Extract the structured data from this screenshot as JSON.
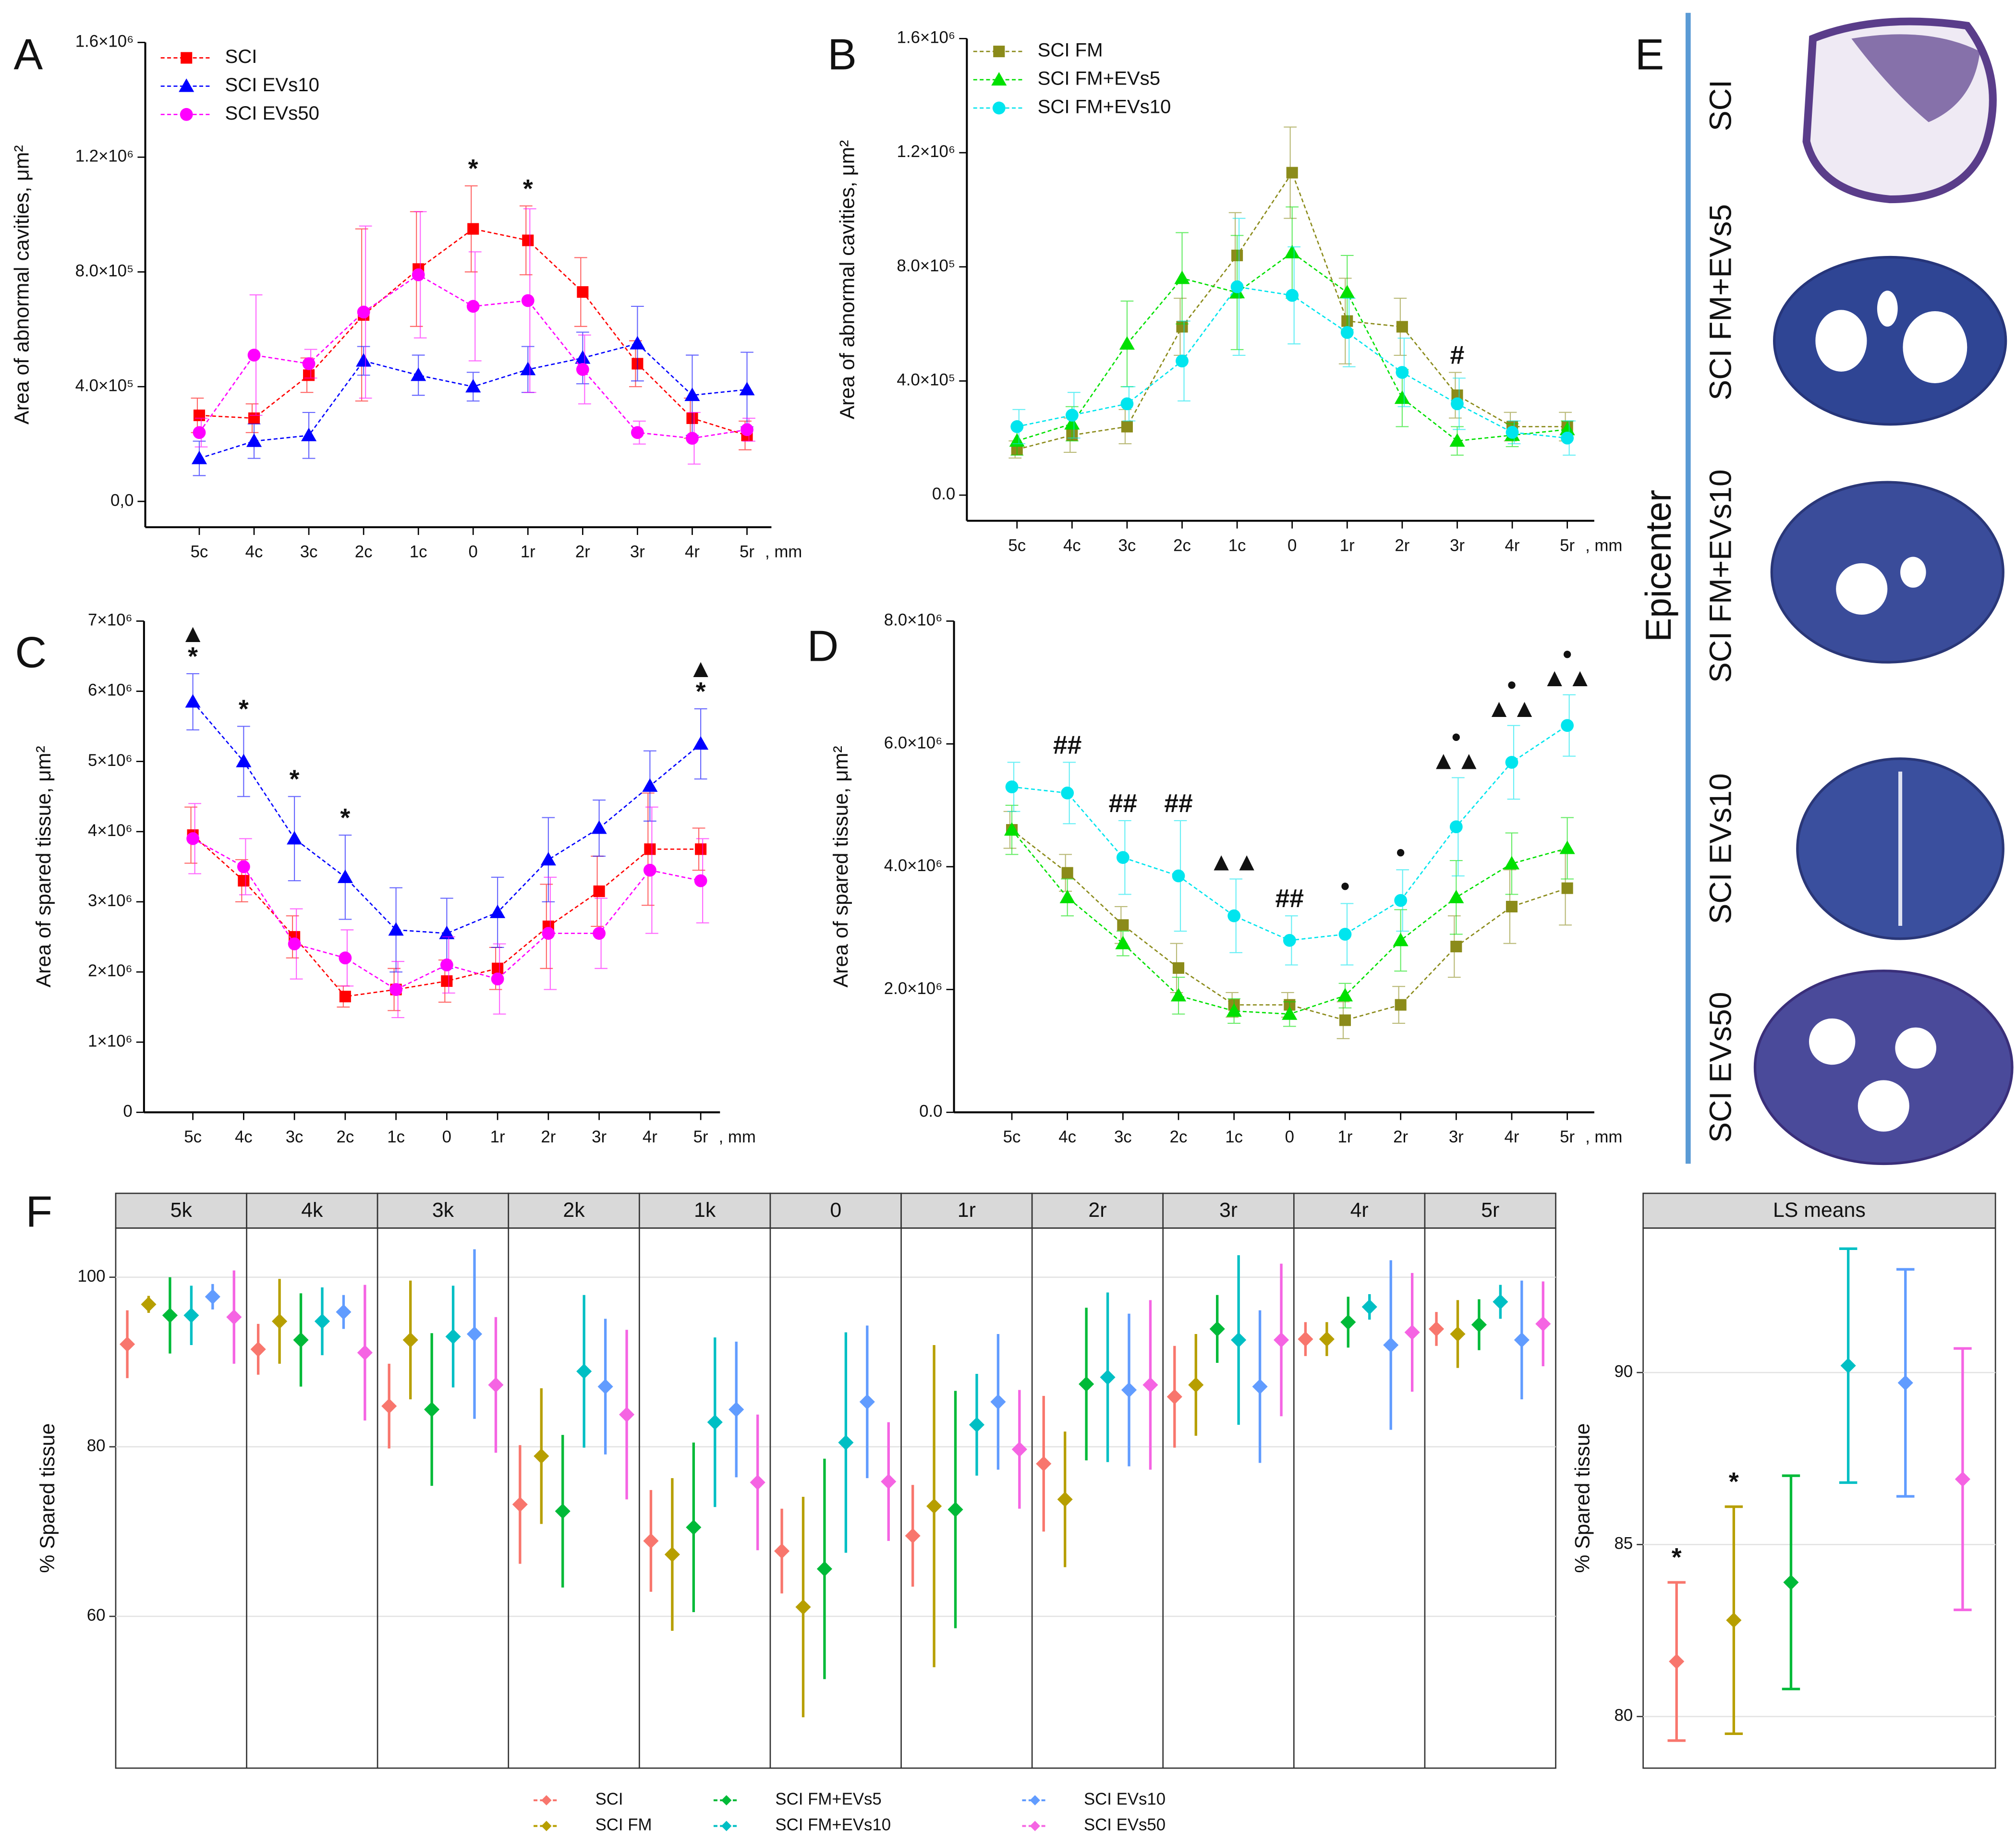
{
  "chart_data": [
    {
      "type": "line",
      "panel": "A",
      "ylabel": "Area of abnormal cavities, μm²",
      "xlabel": ", mm",
      "categories": [
        "5c",
        "4c",
        "3c",
        "2c",
        "1c",
        "0",
        "1r",
        "2r",
        "3r",
        "4r",
        "5r"
      ],
      "ylim": [
        -90000,
        1600000
      ],
      "yticks": [
        {
          "value": 0,
          "label": "0,0"
        },
        {
          "value": 400000,
          "label": "4.0×10⁵"
        },
        {
          "value": 800000,
          "label": "8.0×10⁵"
        },
        {
          "value": 1200000,
          "label": "1.2×10⁶"
        },
        {
          "value": 1600000,
          "label": "1.6×10⁶"
        }
      ],
      "series": [
        {
          "name": "SCI",
          "color": "#ff0000",
          "marker": "square",
          "values": [
            300000,
            290000,
            440000,
            650000,
            810000,
            950000,
            910000,
            730000,
            480000,
            290000,
            230000
          ],
          "errors": [
            60000,
            50000,
            60000,
            300000,
            200000,
            150000,
            120000,
            120000,
            80000,
            70000,
            50000
          ]
        },
        {
          "name": "SCI EVs10",
          "color": "#0000ff",
          "marker": "triangle",
          "values": [
            150000,
            210000,
            230000,
            490000,
            440000,
            400000,
            460000,
            500000,
            550000,
            370000,
            390000
          ],
          "errors": [
            60000,
            60000,
            80000,
            50000,
            70000,
            50000,
            80000,
            90000,
            130000,
            140000,
            130000
          ]
        },
        {
          "name": "SCI EVs50",
          "color": "#ff00ff",
          "marker": "circle",
          "values": [
            240000,
            510000,
            480000,
            660000,
            790000,
            680000,
            700000,
            460000,
            240000,
            220000,
            250000
          ],
          "errors": [
            50000,
            210000,
            50000,
            300000,
            220000,
            190000,
            320000,
            120000,
            40000,
            90000,
            40000
          ]
        }
      ],
      "annotations": [
        {
          "text": "*",
          "x": "0"
        },
        {
          "text": "*",
          "x": "1r"
        }
      ]
    },
    {
      "type": "line",
      "panel": "B",
      "ylabel": "Area of abnormal cavities, μm²",
      "xlabel": ", mm",
      "categories": [
        "5c",
        "4c",
        "3c",
        "2c",
        "1c",
        "0",
        "1r",
        "2r",
        "3r",
        "4r",
        "5r"
      ],
      "ylim": [
        -90000,
        1600000
      ],
      "yticks": [
        {
          "value": 0,
          "label": "0.0"
        },
        {
          "value": 400000,
          "label": "4.0×10⁵"
        },
        {
          "value": 800000,
          "label": "8.0×10⁵"
        },
        {
          "value": 1200000,
          "label": "1.2×10⁶"
        },
        {
          "value": 1600000,
          "label": "1.6×10⁶"
        }
      ],
      "series": [
        {
          "name": "SCI FM",
          "color": "#8b8b1a",
          "marker": "square",
          "values": [
            160000,
            210000,
            240000,
            590000,
            840000,
            1130000,
            610000,
            590000,
            350000,
            240000,
            240000
          ],
          "errors": [
            30000,
            60000,
            60000,
            100000,
            150000,
            160000,
            150000,
            100000,
            80000,
            50000,
            50000
          ]
        },
        {
          "name": "SCI FM+EVs5",
          "color": "#00e000",
          "marker": "triangle",
          "values": [
            190000,
            250000,
            530000,
            760000,
            710000,
            850000,
            710000,
            340000,
            190000,
            210000,
            230000
          ],
          "errors": [
            50000,
            60000,
            150000,
            160000,
            200000,
            160000,
            130000,
            100000,
            50000,
            40000,
            30000
          ]
        },
        {
          "name": "SCI FM+EVs10",
          "color": "#00e5ee",
          "marker": "circle",
          "values": [
            240000,
            280000,
            320000,
            470000,
            730000,
            700000,
            570000,
            430000,
            320000,
            220000,
            200000
          ],
          "errors": [
            60000,
            80000,
            60000,
            140000,
            240000,
            170000,
            120000,
            120000,
            90000,
            40000,
            60000
          ]
        }
      ],
      "annotations": [
        {
          "text": "#",
          "x": "3r"
        }
      ]
    },
    {
      "type": "line",
      "panel": "C",
      "ylabel": "Area of spared tissue, μm²",
      "xlabel": ", mm",
      "categories": [
        "5c",
        "4c",
        "3c",
        "2c",
        "1c",
        "0",
        "1r",
        "2r",
        "3r",
        "4r",
        "5r"
      ],
      "ylim": [
        0,
        7000000
      ],
      "yticks": [
        0,
        {
          "value": 1000000,
          "label": "1×10⁶"
        },
        {
          "value": 2000000,
          "label": "2×10⁶"
        },
        {
          "value": 3000000,
          "label": "3×10⁶"
        },
        {
          "value": 4000000,
          "label": "4×10⁶"
        },
        {
          "value": 5000000,
          "label": "5×10⁶"
        },
        {
          "value": 6000000,
          "label": "6×10⁶"
        },
        {
          "value": 7000000,
          "label": "7×10⁶"
        }
      ],
      "series": [
        {
          "color": "#ff0000",
          "marker": "square",
          "values": [
            3950000,
            3300000,
            2500000,
            1650000,
            1750000,
            1870000,
            2050000,
            2650000,
            3150000,
            3750000,
            3750000
          ],
          "errors": [
            400000,
            300000,
            300000,
            150000,
            300000,
            300000,
            300000,
            600000,
            500000,
            800000,
            300000
          ]
        },
        {
          "color": "#0000ff",
          "marker": "triangle",
          "values": [
            5850000,
            5000000,
            3900000,
            3350000,
            2600000,
            2550000,
            2850000,
            3600000,
            4050000,
            4650000,
            5250000
          ],
          "errors": [
            400000,
            500000,
            600000,
            600000,
            600000,
            500000,
            500000,
            600000,
            400000,
            500000,
            500000
          ]
        },
        {
          "color": "#ff00ff",
          "marker": "circle",
          "values": [
            3900000,
            3500000,
            2400000,
            2200000,
            1750000,
            2100000,
            1900000,
            2550000,
            2550000,
            3450000,
            3300000
          ],
          "errors": [
            500000,
            400000,
            500000,
            400000,
            400000,
            400000,
            500000,
            800000,
            500000,
            900000,
            600000
          ]
        }
      ],
      "annotations": [
        {
          "text": "*",
          "x": "5c"
        },
        {
          "text": "▲",
          "x": "5c"
        },
        {
          "text": "*",
          "x": "4c"
        },
        {
          "text": "*",
          "x": "3c"
        },
        {
          "text": "*",
          "x": "2c"
        },
        {
          "text": "*",
          "x": "5r"
        },
        {
          "text": "▲",
          "x": "5r"
        }
      ]
    },
    {
      "type": "line",
      "panel": "D",
      "ylabel": "Area of spared tissue, μm²",
      "xlabel": ", mm",
      "categories": [
        "5c",
        "4c",
        "3c",
        "2c",
        "1c",
        "0",
        "1r",
        "2r",
        "3r",
        "4r",
        "5r"
      ],
      "ylim": [
        0,
        8000000
      ],
      "yticks": [
        {
          "value": 0,
          "label": "0.0"
        },
        {
          "value": 2000000,
          "label": "2.0×10⁶"
        },
        {
          "value": 4000000,
          "label": "4.0×10⁶"
        },
        {
          "value": 6000000,
          "label": "6.0×10⁶"
        },
        {
          "value": 8000000,
          "label": "8.0×10⁶"
        }
      ],
      "series": [
        {
          "color": "#8b8b1a",
          "marker": "square",
          "values": [
            4600000,
            3900000,
            3050000,
            2350000,
            1750000,
            1750000,
            1500000,
            1750000,
            2700000,
            3350000,
            3650000
          ],
          "errors": [
            300000,
            300000,
            300000,
            400000,
            200000,
            200000,
            300000,
            300000,
            500000,
            600000,
            600000
          ]
        },
        {
          "color": "#00e000",
          "marker": "triangle",
          "values": [
            4600000,
            3500000,
            2750000,
            1900000,
            1650000,
            1600000,
            1900000,
            2800000,
            3500000,
            4050000,
            4300000
          ],
          "errors": [
            400000,
            300000,
            200000,
            300000,
            200000,
            200000,
            200000,
            500000,
            600000,
            500000,
            500000
          ]
        },
        {
          "color": "#00e5ee",
          "marker": "circle",
          "values": [
            5300000,
            5200000,
            4150000,
            3850000,
            3200000,
            2800000,
            2900000,
            3450000,
            4650000,
            5700000,
            6300000
          ],
          "errors": [
            400000,
            500000,
            600000,
            900000,
            600000,
            400000,
            500000,
            500000,
            800000,
            600000,
            500000
          ]
        }
      ],
      "annotations": [
        {
          "text": "##",
          "x": "4c"
        },
        {
          "text": "##",
          "x": "3c"
        },
        {
          "text": "##",
          "x": "2c"
        },
        {
          "text": "▲▲",
          "x": "1c"
        },
        {
          "text": "##",
          "x": "0"
        },
        {
          "text": "•",
          "x": "1r"
        },
        {
          "text": "•",
          "x": "2r"
        },
        {
          "text": "▲▲",
          "x": "3r"
        },
        {
          "text": "•",
          "x": "3r"
        },
        {
          "text": "▲▲",
          "x": "4r"
        },
        {
          "text": "•",
          "x": "4r"
        },
        {
          "text": "▲▲",
          "x": "5r"
        },
        {
          "text": "•",
          "x": "5r"
        }
      ]
    },
    {
      "type": "pointrange",
      "panel": "F",
      "ylabel": "% Spared tissue",
      "facets": [
        "5k",
        "4k",
        "3k",
        "2k",
        "1k",
        "0",
        "1r",
        "2r",
        "3r",
        "4r",
        "5r"
      ],
      "ylim": [
        42.1,
        105.8
      ],
      "yticks": [
        60,
        80,
        100
      ],
      "grid": true,
      "series": [
        {
          "name": "SCI",
          "color": "#f8766d",
          "values": [
            92.1,
            91.5,
            84.8,
            73.2,
            68.9,
            67.7,
            69.5,
            78.0,
            85.9,
            92.7,
            93.9
          ],
          "errors": [
            4,
            3,
            5,
            7,
            6,
            5,
            6,
            8,
            6,
            2,
            2
          ]
        },
        {
          "name": "SCI FM",
          "color": "#b79f00",
          "values": [
            96.8,
            94.8,
            92.6,
            78.9,
            67.3,
            61.1,
            73.0,
            73.8,
            87.3,
            92.7,
            93.3
          ],
          "errors": [
            1,
            5,
            7,
            8,
            9,
            13,
            19,
            8,
            6,
            2,
            4
          ]
        },
        {
          "name": "SCI FM+EVs5",
          "color": "#00ba38",
          "values": [
            95.5,
            92.6,
            84.4,
            72.4,
            70.5,
            65.6,
            72.6,
            87.4,
            93.9,
            94.7,
            94.4
          ],
          "errors": [
            4.5,
            5.5,
            9,
            9,
            10,
            13,
            14,
            9,
            4,
            3,
            3
          ]
        },
        {
          "name": "SCI FM+EVs10",
          "color": "#00bfc4",
          "values": [
            95.5,
            94.8,
            93.0,
            88.9,
            82.9,
            80.5,
            82.6,
            88.2,
            92.6,
            96.5,
            97.1
          ],
          "errors": [
            3.5,
            4,
            6,
            9,
            10,
            13,
            6,
            10,
            10,
            1.5,
            2
          ]
        },
        {
          "name": "SCI EVs10",
          "color": "#619cff",
          "values": [
            97.7,
            95.9,
            93.3,
            87.1,
            84.4,
            85.3,
            85.3,
            86.7,
            87.1,
            92.0,
            92.6
          ],
          "errors": [
            1.5,
            2,
            10,
            8,
            8,
            9,
            8,
            9,
            9,
            10,
            7
          ]
        },
        {
          "name": "SCI EVs50",
          "color": "#f564e3",
          "values": [
            95.3,
            91.1,
            87.3,
            83.8,
            75.8,
            75.9,
            79.7,
            87.3,
            92.6,
            93.5,
            94.5
          ],
          "errors": [
            5.5,
            8,
            8,
            10,
            8,
            7,
            7,
            10,
            9,
            7,
            5
          ]
        }
      ]
    },
    {
      "type": "pointrange",
      "title": "LS means",
      "ylabel": "% Spared tissue",
      "ylim": [
        78.5,
        94.2
      ],
      "yticks": [
        80,
        85,
        90
      ],
      "grid": true,
      "colors": [
        "#f8766d",
        "#b79f00",
        "#00ba38",
        "#00bfc4",
        "#619cff",
        "#f564e3"
      ],
      "values": [
        81.6,
        82.8,
        83.9,
        90.2,
        89.7,
        86.9
      ],
      "errors": [
        2.3,
        3.3,
        3.1,
        3.4,
        3.3,
        3.8
      ],
      "annotations": [
        {
          "text": "*",
          "index": 0
        },
        {
          "text": "*",
          "index": 1
        }
      ]
    }
  ],
  "panel_e": {
    "panel": "E",
    "caption": "Epicenter",
    "labels": [
      "SCI",
      "SCI FM+EVs5",
      "SCI FM+EVs10",
      "SCI EVs10",
      "SCI EVs50"
    ]
  }
}
